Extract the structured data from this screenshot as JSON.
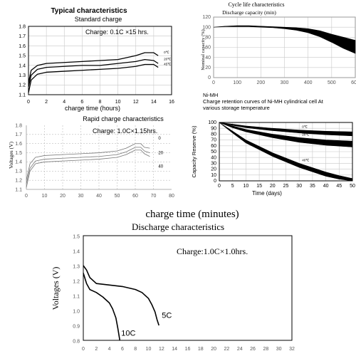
{
  "chart_data": [
    {
      "id": "standard",
      "type": "line",
      "title": "Typical characteristics",
      "subtitle": "Standard charge",
      "annotation": "Charge: 0.1C  ×15 hrs.",
      "xlabel": "charge time (hours)",
      "ylabel": "",
      "xlim": [
        0,
        16
      ],
      "ylim": [
        1.1,
        1.8
      ],
      "xticks": [
        "0",
        "2",
        "4",
        "6",
        "8",
        "10",
        "12",
        "14",
        "16"
      ],
      "yticks": [
        "1.1",
        "1.2",
        "1.3",
        "1.4",
        "1.5",
        "1.6",
        "1.7",
        "1.8"
      ],
      "grid": true,
      "series": [
        {
          "name": "0℃",
          "x": [
            0,
            0.3,
            1,
            2,
            4,
            6,
            8,
            10,
            12,
            13,
            14,
            14.5
          ],
          "y": [
            1.22,
            1.35,
            1.4,
            1.42,
            1.43,
            1.44,
            1.45,
            1.46,
            1.5,
            1.53,
            1.53,
            1.5
          ]
        },
        {
          "name": "20℃",
          "x": [
            0,
            0.3,
            1,
            2,
            4,
            6,
            8,
            10,
            12,
            13,
            14,
            14.5
          ],
          "y": [
            1.18,
            1.3,
            1.36,
            1.38,
            1.39,
            1.4,
            1.4,
            1.42,
            1.44,
            1.46,
            1.45,
            1.42
          ]
        },
        {
          "name": "45℃",
          "x": [
            0,
            0.3,
            1,
            2,
            4,
            6,
            8,
            10,
            12,
            13,
            14,
            14.5
          ],
          "y": [
            1.12,
            1.25,
            1.31,
            1.33,
            1.34,
            1.35,
            1.36,
            1.37,
            1.39,
            1.41,
            1.41,
            1.38
          ]
        }
      ]
    },
    {
      "id": "cycle",
      "type": "area",
      "title": "Cycle life characteristics",
      "subtitle": "Discharge capacity (min)",
      "xlabel": "",
      "ylabel": "Nominal capacity (%)",
      "xlim": [
        0,
        600
      ],
      "ylim": [
        0,
        120
      ],
      "xticks": [
        "0",
        "100",
        "200",
        "300",
        "400",
        "500",
        "600"
      ],
      "yticks": [
        "0",
        "20",
        "40",
        "60",
        "80",
        "100",
        "120"
      ],
      "grid": true,
      "series": [
        {
          "name": "",
          "x": [
            0,
            50,
            100,
            150,
            200,
            250,
            300,
            350,
            400,
            450,
            500,
            550,
            600
          ],
          "upper": [
            100,
            102,
            103,
            103,
            102,
            101,
            100,
            99,
            97,
            93,
            86,
            80,
            74
          ],
          "lower": [
            100,
            101,
            101,
            101,
            100,
            99,
            97,
            94,
            89,
            81,
            70,
            58,
            48
          ]
        }
      ]
    },
    {
      "id": "rapid",
      "type": "line",
      "title": "Rapid charge characteristics",
      "annotation": "Charge: 1.0C×1.15hrs.",
      "xlabel": "charge time (minutes)",
      "ylabel": "Voltages (V)",
      "xlim": [
        0,
        80
      ],
      "ylim": [
        1.1,
        1.8
      ],
      "xticks": [
        "0",
        "10",
        "20",
        "30",
        "40",
        "50",
        "60",
        "70",
        "80"
      ],
      "yticks": [
        "1.1",
        "1.2",
        "1.3",
        "1.4",
        "1.5",
        "1.6",
        "1.7",
        "1.8"
      ],
      "grid": true,
      "series": [
        {
          "name": "0",
          "x": [
            0,
            2,
            5,
            10,
            20,
            30,
            40,
            50,
            55,
            60,
            63,
            65,
            68
          ],
          "y": [
            1.2,
            1.38,
            1.45,
            1.47,
            1.48,
            1.49,
            1.5,
            1.52,
            1.55,
            1.6,
            1.6,
            1.56,
            1.55
          ]
        },
        {
          "name": "20",
          "x": [
            0,
            2,
            5,
            10,
            20,
            30,
            40,
            50,
            55,
            60,
            63,
            65,
            68
          ],
          "y": [
            1.16,
            1.33,
            1.41,
            1.43,
            1.44,
            1.45,
            1.46,
            1.48,
            1.51,
            1.56,
            1.56,
            1.52,
            1.5
          ]
        },
        {
          "name": "40",
          "x": [
            0,
            2,
            5,
            10,
            20,
            30,
            40,
            50,
            55,
            60,
            63,
            65,
            68
          ],
          "y": [
            1.12,
            1.3,
            1.38,
            1.4,
            1.41,
            1.42,
            1.43,
            1.45,
            1.48,
            1.53,
            1.53,
            1.49,
            1.46
          ]
        }
      ]
    },
    {
      "id": "retention",
      "type": "area",
      "title": "Ni-MH",
      "subtitle": "Charge retention curves of Ni-MH cylindrical cell At various storage temperature",
      "xlabel": "Time (days)",
      "ylabel": "Capacity Reserve (%)",
      "xlim": [
        0,
        50
      ],
      "ylim": [
        0,
        100
      ],
      "xticks": [
        "0",
        "5",
        "10",
        "15",
        "20",
        "25",
        "30",
        "35",
        "40",
        "45",
        "50"
      ],
      "yticks": [
        "0",
        "10",
        "20",
        "30",
        "40",
        "50",
        "60",
        "70",
        "80",
        "90",
        "100"
      ],
      "grid": true,
      "series": [
        {
          "name": "0℃",
          "x": [
            0,
            5,
            10,
            20,
            30,
            40,
            50
          ],
          "upper": [
            100,
            97,
            94,
            90,
            87,
            85,
            84
          ],
          "lower": [
            100,
            95,
            91,
            86,
            82,
            79,
            77
          ]
        },
        {
          "name": "20℃",
          "x": [
            0,
            5,
            10,
            20,
            30,
            40,
            50
          ],
          "upper": [
            100,
            94,
            88,
            80,
            74,
            70,
            68
          ],
          "lower": [
            100,
            91,
            84,
            74,
            66,
            61,
            58
          ]
        },
        {
          "name": "40℃",
          "x": [
            0,
            5,
            10,
            20,
            30,
            40,
            45,
            50
          ],
          "upper": [
            100,
            85,
            70,
            48,
            30,
            15,
            9,
            4
          ],
          "lower": [
            100,
            82,
            65,
            42,
            23,
            8,
            3,
            0
          ]
        }
      ]
    },
    {
      "id": "discharge",
      "type": "line",
      "title": "Discharge characteristics",
      "annotation": "Charge:1.0C×1.0hrs.",
      "xlabel": "",
      "ylabel": "Voltages (V)",
      "xlim": [
        0,
        32
      ],
      "ylim": [
        0.8,
        1.5
      ],
      "xticks": [
        "0",
        "2",
        "4",
        "6",
        "8",
        "10",
        "12",
        "14",
        "16",
        "18",
        "20",
        "22",
        "24",
        "26",
        "28",
        "30",
        "32"
      ],
      "yticks": [
        "0.8",
        "0.9",
        "1.0",
        "1.1",
        "1.2",
        "1.3",
        "1.4",
        "1.5"
      ],
      "grid": false,
      "series": [
        {
          "name": "5C",
          "x": [
            0,
            0.5,
            1,
            2,
            4,
            6,
            8,
            9,
            10,
            10.5,
            11,
            11.3,
            11.6
          ],
          "y": [
            1.3,
            1.27,
            1.22,
            1.18,
            1.17,
            1.16,
            1.14,
            1.12,
            1.08,
            1.04,
            0.99,
            0.94,
            0.9
          ]
        },
        {
          "name": "10C",
          "x": [
            0,
            0.5,
            1,
            2,
            3,
            4,
            4.5,
            5,
            5.3,
            5.6
          ],
          "y": [
            1.25,
            1.18,
            1.14,
            1.12,
            1.09,
            1.05,
            1.01,
            0.95,
            0.88,
            0.8
          ]
        }
      ]
    }
  ]
}
